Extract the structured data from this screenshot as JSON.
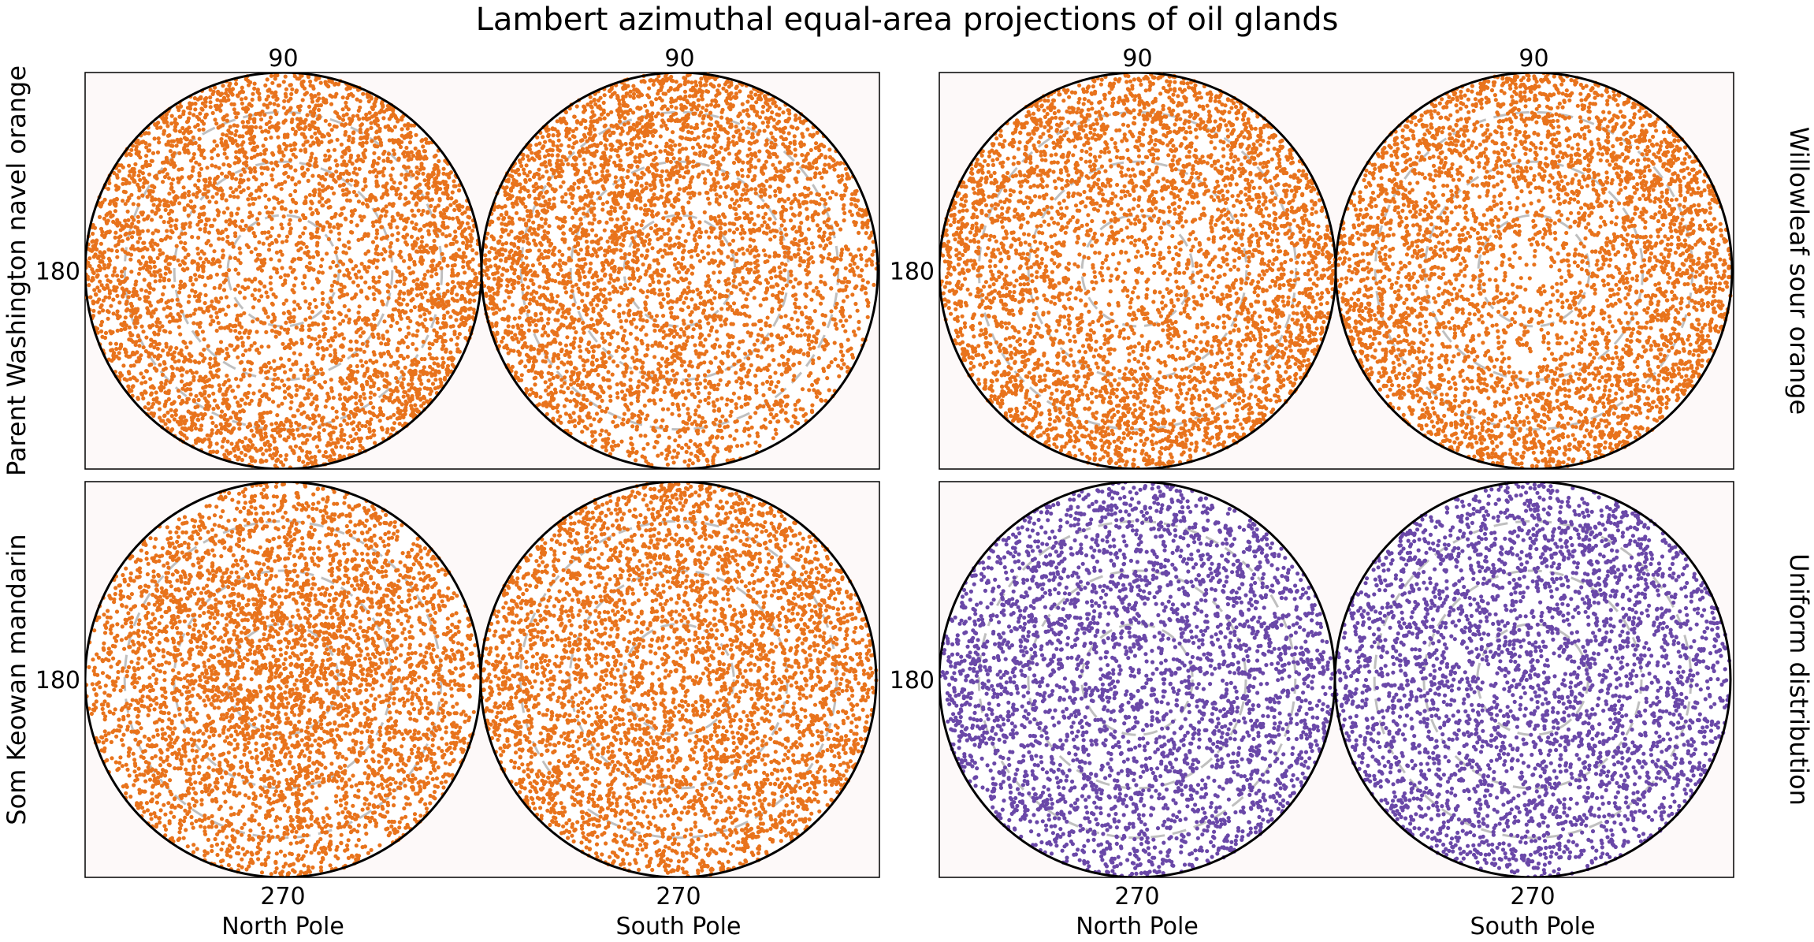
{
  "title": "Lambert azimuthal equal-area projections of oil glands",
  "colors": {
    "citrus": "#e8731c",
    "uniform": "#6a48a8",
    "panel_background": "#fdf9f9",
    "contour": "#bfbfbf",
    "disk_edge": "#000000"
  },
  "chart_data": [
    {
      "type": "scatter",
      "projection": "lambert-azimuthal-equal-area",
      "specimen_label": "Parent Washington navel orange",
      "label_side": "left",
      "color_key": "citrus",
      "north_pole_label": "",
      "south_pole_label": "",
      "tick_labels": {
        "top": "90",
        "left": "180",
        "bottom": ""
      },
      "density_note": "",
      "disks": [
        {
          "hemisphere": "north",
          "points_estimate": 4500,
          "pattern": "edge-dense"
        },
        {
          "hemisphere": "south",
          "points_estimate": 4500,
          "pattern": "upper-left-dense"
        }
      ]
    },
    {
      "type": "scatter",
      "projection": "lambert-azimuthal-equal-area",
      "specimen_label": "Willowleaf sour orange",
      "label_side": "right",
      "color_key": "citrus",
      "north_pole_label": "",
      "south_pole_label": "",
      "tick_labels": {
        "top": "90",
        "left": "180",
        "bottom": ""
      },
      "disks": [
        {
          "hemisphere": "north",
          "points_estimate": 4500,
          "pattern": "edge-dense"
        },
        {
          "hemisphere": "south",
          "points_estimate": 4500,
          "pattern": "edge-dense"
        }
      ]
    },
    {
      "type": "scatter",
      "projection": "lambert-azimuthal-equal-area",
      "specimen_label": "Som Keowan mandarin",
      "label_side": "left",
      "color_key": "citrus",
      "north_pole_label": "North Pole",
      "south_pole_label": "South Pole",
      "tick_labels": {
        "top": "",
        "left": "180",
        "bottom": "270"
      },
      "disks": [
        {
          "hemisphere": "north",
          "points_estimate": 4500,
          "pattern": "center-dense"
        },
        {
          "hemisphere": "south",
          "points_estimate": 4500,
          "pattern": "even"
        }
      ]
    },
    {
      "type": "scatter",
      "projection": "lambert-azimuthal-equal-area",
      "specimen_label": "Uniform distribution",
      "label_side": "right",
      "color_key": "uniform",
      "north_pole_label": "North Pole",
      "south_pole_label": "South Pole",
      "tick_labels": {
        "top": "",
        "left": "180",
        "bottom": "270"
      },
      "disks": [
        {
          "hemisphere": "north",
          "points_estimate": 3500,
          "pattern": "even"
        },
        {
          "hemisphere": "south",
          "points_estimate": 3500,
          "pattern": "even"
        }
      ]
    }
  ]
}
